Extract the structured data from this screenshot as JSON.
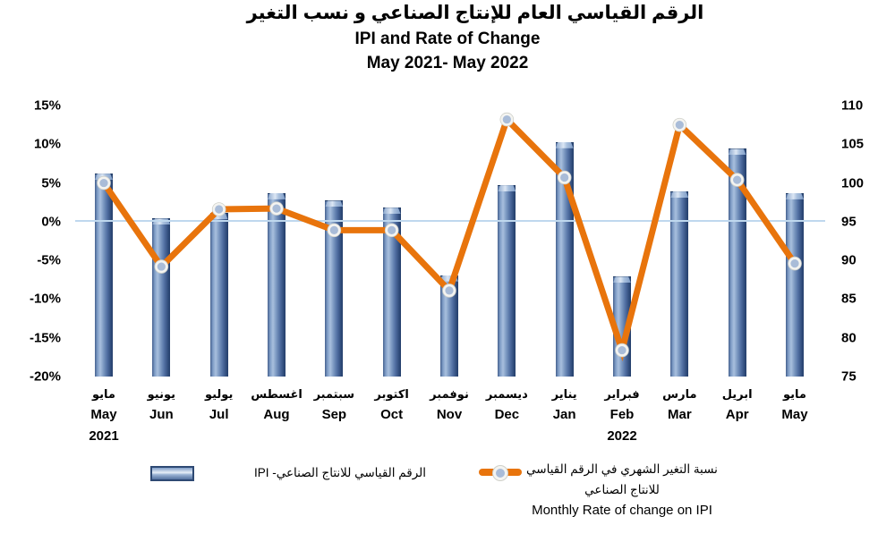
{
  "title": {
    "line1_ar": "الرقم القياسي العام للإنتاج الصناعي و نسب التغير",
    "line2_en": "IPI and Rate of Change",
    "line3_en": "May 2021- May 2022"
  },
  "legend": {
    "ipi_label": "الرقم القياسي للانتاج الصناعي- IPI",
    "rate_label_ar_line1": "نسبة التغير الشهري في الرقم القياسي",
    "rate_label_ar_line2": "للانتاج الصناعي",
    "rate_label_en": "Monthly Rate of change on IPI"
  },
  "chart_data": {
    "type": "combo bar+line",
    "title": "IPI and Rate of Change May 2021- May 2022",
    "categories_en": [
      "May",
      "Jun",
      "Jul",
      "Aug",
      "Sep",
      "Oct",
      "Nov",
      "Dec",
      "Jan",
      "Feb",
      "Mar",
      "Apr",
      "May"
    ],
    "categories_ar": [
      "مايو",
      "يونيو",
      "يوليو",
      "اغسطس",
      "سبتمبر",
      "اكتوبر",
      "نوفمبر",
      "ديسمبر",
      "يناير",
      "فبراير",
      "مارس",
      "ابريل",
      "مايو"
    ],
    "year_labels": [
      "2021",
      "",
      "",
      "",
      "",
      "",
      "",
      "",
      "",
      "2022",
      "",
      "",
      ""
    ],
    "series": [
      {
        "name": "الرقم القياسي للانتاج الصناعي- IPI",
        "type": "bar",
        "axis": "right",
        "values": [
          101.2,
          95.4,
          96.1,
          98.7,
          97.7,
          96.8,
          88.1,
          99.7,
          105.3,
          87.9,
          98.9,
          104.4,
          98.7
        ]
      },
      {
        "name": "Monthly Rate of change on IPI",
        "name_ar": "نسبة التغير الشهري في الرقم القياسي للانتاج الصناعي",
        "type": "line",
        "axis": "left",
        "values": [
          5.0,
          -5.8,
          1.6,
          1.7,
          -1.1,
          -1.1,
          -8.9,
          13.2,
          5.7,
          -16.6,
          12.5,
          5.4,
          -5.4
        ]
      }
    ],
    "left_axis": {
      "ticks": [
        "15%",
        "10%",
        "5%",
        "0%",
        "-5%",
        "-10%",
        "-15%",
        "-20%"
      ],
      "min": -20,
      "max": 15,
      "unit": "%"
    },
    "right_axis": {
      "ticks": [
        "110",
        "105",
        "100",
        "95",
        "90",
        "85",
        "80",
        "75"
      ],
      "min": 75,
      "max": 110
    },
    "gridlines": "single horizontal line at 0% / 95",
    "legend_position": "bottom"
  },
  "colors": {
    "line": "#e8740c",
    "marker_fill": "#a9bcd8",
    "marker_ring": "#f4f4f1",
    "bar_mid": "#7c99c2",
    "bar_dark": "#2f4b7a",
    "bar_light": "#a9c0de",
    "zero_line": "#bfd8ee",
    "text": "#000000"
  }
}
